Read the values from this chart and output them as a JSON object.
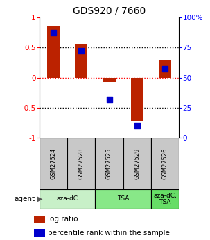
{
  "title": "GDS920 / 7660",
  "samples": [
    "GSM27524",
    "GSM27528",
    "GSM27525",
    "GSM27529",
    "GSM27526"
  ],
  "log_ratio": [
    0.85,
    0.56,
    -0.07,
    -0.72,
    0.3
  ],
  "percentile_rank": [
    87,
    72,
    32,
    10,
    57
  ],
  "agent_groups": [
    {
      "label": "aza-dC",
      "start": 0,
      "end": 1,
      "color": "#c8f0c8"
    },
    {
      "label": "TSA",
      "start": 2,
      "end": 3,
      "color": "#90e090"
    },
    {
      "label": "aza-dC,\nTSA",
      "start": 4,
      "end": 4,
      "color": "#70d070"
    }
  ],
  "bar_color": "#bb2200",
  "dot_color": "#0000cc",
  "ylim": [
    -1,
    1
  ],
  "yticks_left": [
    -1,
    -0.5,
    0,
    0.5,
    1
  ],
  "yticks_left_labels": [
    "-1",
    "-0.5",
    "0",
    "0.5",
    "1"
  ],
  "yticks_right": [
    0,
    25,
    50,
    75,
    100
  ],
  "yticks_right_labels": [
    "0",
    "25",
    "50",
    "75",
    "100%"
  ],
  "hlines_dotted": [
    -0.5,
    0.5
  ],
  "hline_red": 0,
  "background_color": "#ffffff",
  "sample_box_color": "#c8c8c8",
  "bar_width": 0.45,
  "dot_size": 40,
  "legend_items": [
    {
      "color": "#bb2200",
      "label": "log ratio"
    },
    {
      "color": "#0000cc",
      "label": "percentile rank within the sample"
    }
  ]
}
